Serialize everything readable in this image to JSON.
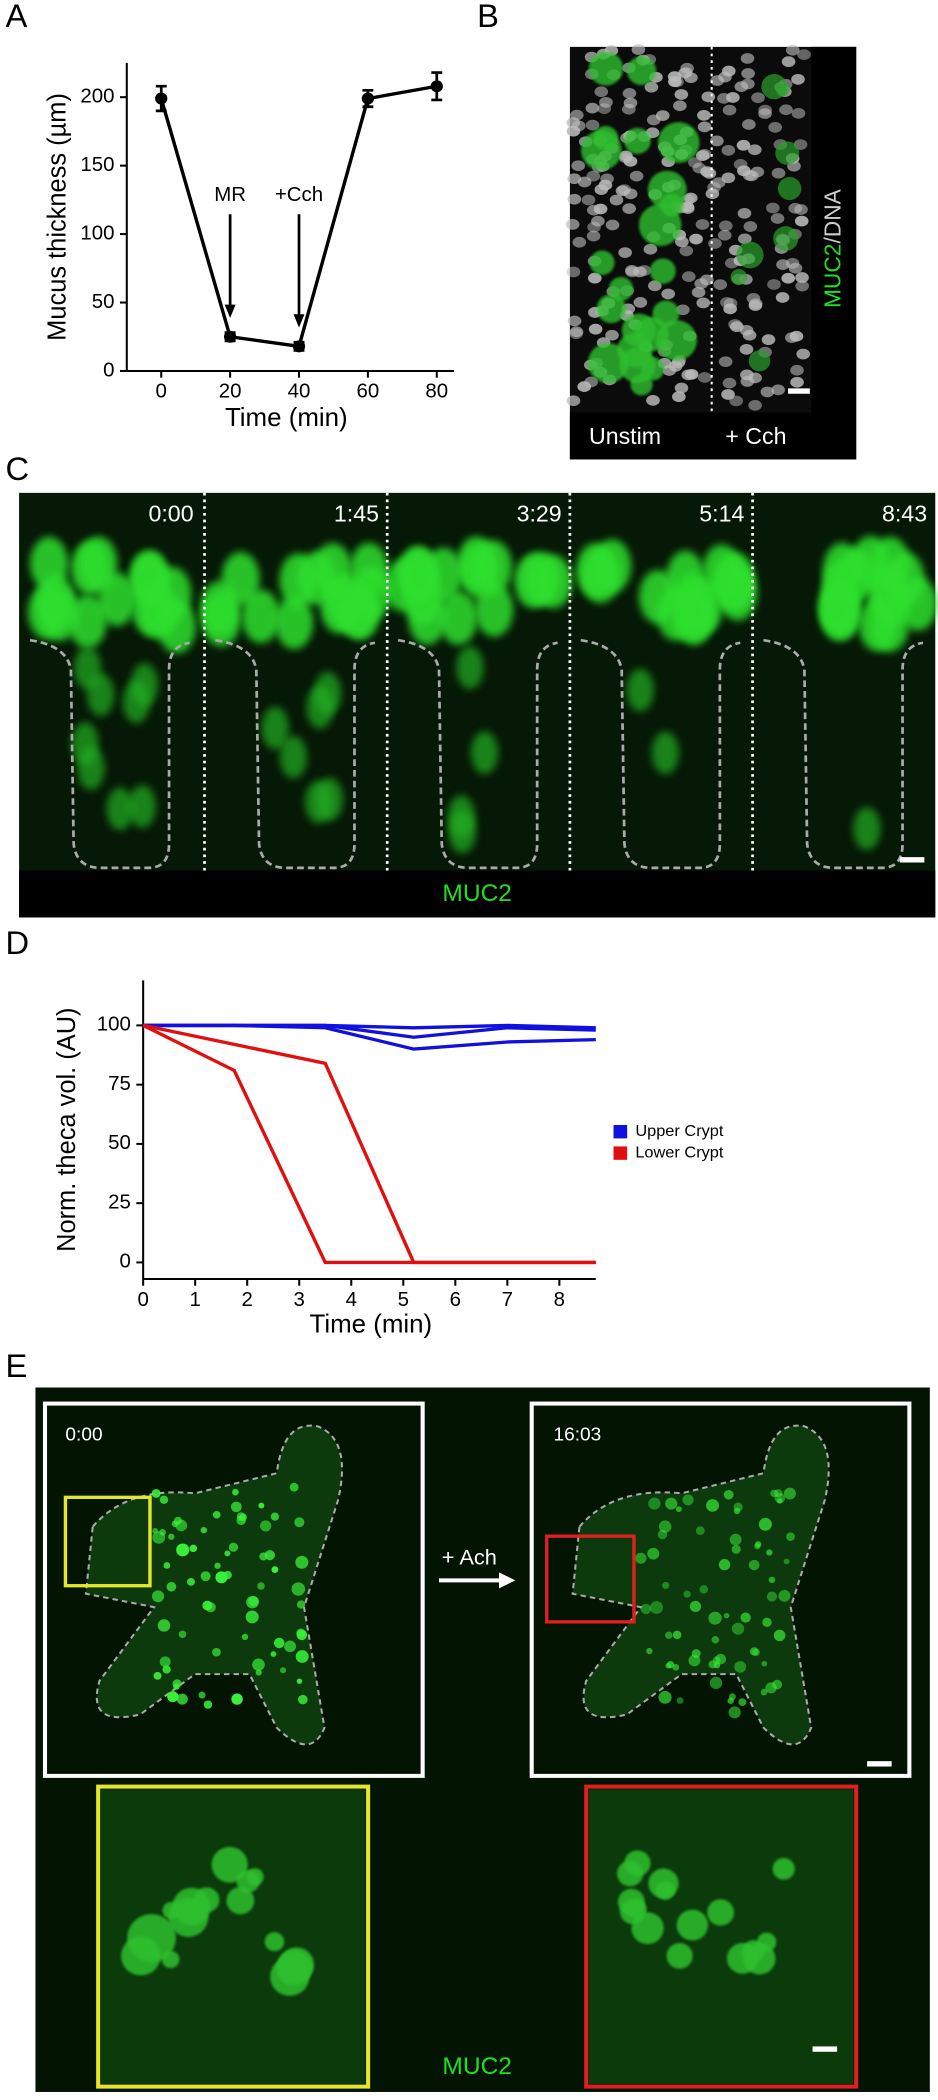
{
  "panels": {
    "a": "A",
    "b": "B",
    "c": "C",
    "d": "D",
    "e": "E"
  },
  "panel_b": {
    "stain_muc2": "MUC2",
    "stain_sep": "/",
    "stain_dna": "DNA",
    "left": "Unstim",
    "right": "+ Cch"
  },
  "panel_c": {
    "times": [
      "0:00",
      "1:45",
      "3:29",
      "5:14",
      "8:43"
    ],
    "stain": "MUC2"
  },
  "panel_e": {
    "time_start": "0:00",
    "time_end": "16:03",
    "treatment": "+ Ach",
    "stain": "MUC2"
  },
  "chart_data": [
    {
      "type": "line",
      "x_label": "Time (min)",
      "y_label": "Mucus thickness (µm)",
      "x": [
        0,
        20,
        40,
        60,
        80
      ],
      "series": [
        {
          "color": "#000000",
          "values": [
            199,
            25,
            18,
            199,
            208
          ],
          "errors": [
            9,
            3,
            3,
            6,
            10
          ]
        }
      ],
      "annotations": [
        "MR",
        "+Cch"
      ],
      "xlim": [
        -10,
        85
      ],
      "xticks": [
        0,
        20,
        40,
        60,
        80
      ],
      "ylim": [
        0,
        225
      ],
      "yticks": [
        0,
        50,
        100,
        150,
        200
      ]
    },
    {
      "type": "line",
      "x_label": "Time (min)",
      "y_label": "Norm. theca vol. (AU)",
      "x": [
        0,
        1.75,
        3.5,
        5.2,
        7,
        8.7
      ],
      "series": [
        {
          "name": "Upper Crypt",
          "color": "#1010e0",
          "values": [
            100,
            100,
            100,
            99,
            100,
            99
          ]
        },
        {
          "name": null,
          "color": "#1010e0",
          "values": [
            100,
            100,
            100,
            95,
            99,
            98
          ]
        },
        {
          "name": null,
          "color": "#1010e0",
          "values": [
            100,
            100,
            99,
            90,
            93,
            94
          ]
        },
        {
          "name": "Lower Crypt",
          "color": "#e01010",
          "values": [
            100,
            81,
            0,
            0,
            0,
            0
          ]
        },
        {
          "name": null,
          "color": "#e01010",
          "values": [
            100,
            92,
            84,
            0,
            0,
            0
          ]
        }
      ],
      "legend": "right",
      "xlim": [
        0,
        8.7
      ],
      "xticks": [
        0,
        1,
        2,
        3,
        4,
        5,
        6,
        7,
        8
      ],
      "ylim": [
        -7,
        119
      ],
      "yticks": [
        0,
        25,
        50,
        75,
        100
      ]
    }
  ]
}
